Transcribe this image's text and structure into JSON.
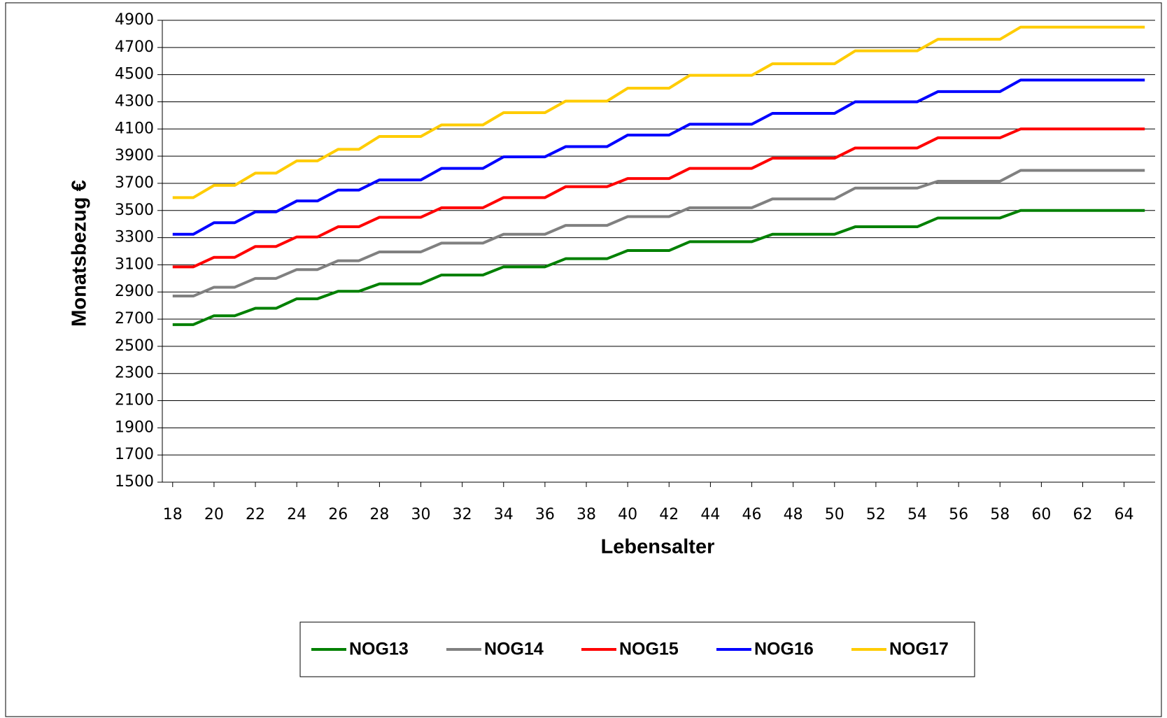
{
  "chart_data": {
    "type": "line",
    "x_label": "Lebensalter",
    "y_label": "Monatsbezug €",
    "x": [
      18,
      19,
      20,
      21,
      22,
      23,
      24,
      25,
      26,
      27,
      28,
      29,
      30,
      31,
      32,
      33,
      34,
      35,
      36,
      37,
      38,
      39,
      40,
      41,
      42,
      43,
      44,
      45,
      46,
      47,
      48,
      49,
      50,
      51,
      52,
      53,
      54,
      55,
      56,
      57,
      58,
      59,
      60,
      61,
      62,
      63,
      64,
      65
    ],
    "xlim": [
      17.5,
      65.5
    ],
    "xticks": [
      18,
      20,
      22,
      24,
      26,
      28,
      30,
      32,
      34,
      36,
      38,
      40,
      42,
      44,
      46,
      48,
      50,
      52,
      54,
      56,
      58,
      60,
      62,
      64
    ],
    "ylim": [
      1500,
      4900
    ],
    "yticks": [
      1500,
      1700,
      1900,
      2100,
      2300,
      2500,
      2700,
      2900,
      3100,
      3300,
      3500,
      3700,
      3900,
      4100,
      4300,
      4500,
      4700,
      4900
    ],
    "grid": true,
    "legend": "bottom",
    "series": [
      {
        "name": "NOG13",
        "color": "#008000",
        "values": [
          2660,
          2660,
          2725,
          2725,
          2780,
          2780,
          2850,
          2850,
          2905,
          2905,
          2960,
          2960,
          2960,
          3025,
          3025,
          3025,
          3085,
          3085,
          3085,
          3145,
          3145,
          3145,
          3205,
          3205,
          3205,
          3270,
          3270,
          3270,
          3270,
          3325,
          3325,
          3325,
          3325,
          3380,
          3380,
          3380,
          3380,
          3445,
          3445,
          3445,
          3445,
          3500,
          3500,
          3500,
          3500,
          3500,
          3500,
          3500
        ]
      },
      {
        "name": "NOG14",
        "color": "#808080",
        "values": [
          2870,
          2870,
          2935,
          2935,
          3000,
          3000,
          3065,
          3065,
          3130,
          3130,
          3195,
          3195,
          3195,
          3260,
          3260,
          3260,
          3325,
          3325,
          3325,
          3390,
          3390,
          3390,
          3455,
          3455,
          3455,
          3520,
          3520,
          3520,
          3520,
          3585,
          3585,
          3585,
          3585,
          3665,
          3665,
          3665,
          3665,
          3715,
          3715,
          3715,
          3715,
          3795,
          3795,
          3795,
          3795,
          3795,
          3795,
          3795
        ]
      },
      {
        "name": "NOG15",
        "color": "#ff0000",
        "values": [
          3085,
          3085,
          3155,
          3155,
          3235,
          3235,
          3305,
          3305,
          3380,
          3380,
          3450,
          3450,
          3450,
          3520,
          3520,
          3520,
          3595,
          3595,
          3595,
          3675,
          3675,
          3675,
          3735,
          3735,
          3735,
          3810,
          3810,
          3810,
          3810,
          3885,
          3885,
          3885,
          3885,
          3960,
          3960,
          3960,
          3960,
          4035,
          4035,
          4035,
          4035,
          4100,
          4100,
          4100,
          4100,
          4100,
          4100,
          4100
        ]
      },
      {
        "name": "NOG16",
        "color": "#0000ff",
        "values": [
          3325,
          3325,
          3410,
          3410,
          3490,
          3490,
          3570,
          3570,
          3650,
          3650,
          3725,
          3725,
          3725,
          3810,
          3810,
          3810,
          3895,
          3895,
          3895,
          3970,
          3970,
          3970,
          4055,
          4055,
          4055,
          4135,
          4135,
          4135,
          4135,
          4215,
          4215,
          4215,
          4215,
          4300,
          4300,
          4300,
          4300,
          4375,
          4375,
          4375,
          4375,
          4460,
          4460,
          4460,
          4460,
          4460,
          4460,
          4460
        ]
      },
      {
        "name": "NOG17",
        "color": "#ffcc00",
        "values": [
          3595,
          3595,
          3685,
          3685,
          3775,
          3775,
          3865,
          3865,
          3950,
          3950,
          4045,
          4045,
          4045,
          4130,
          4130,
          4130,
          4220,
          4220,
          4220,
          4305,
          4305,
          4305,
          4400,
          4400,
          4400,
          4495,
          4495,
          4495,
          4495,
          4580,
          4580,
          4580,
          4580,
          4675,
          4675,
          4675,
          4675,
          4760,
          4760,
          4760,
          4760,
          4850,
          4850,
          4850,
          4850,
          4850,
          4850,
          4850
        ]
      }
    ]
  }
}
